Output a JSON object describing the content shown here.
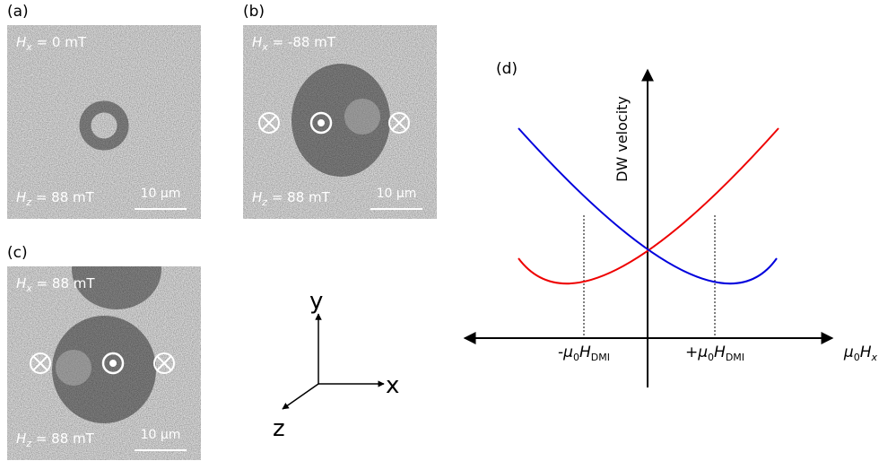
{
  "panels": [
    {
      "label": "(a)",
      "hx": {
        "symbol": "H",
        "sub": "x",
        "value": " = 0 mT"
      },
      "hz": {
        "symbol": "H",
        "sub": "z",
        "value": " = 88 mT"
      },
      "scale_bar": "10 μm"
    },
    {
      "label": "(b)",
      "hx": {
        "symbol": "H",
        "sub": "x",
        "value": " = -88 mT"
      },
      "hz": {
        "symbol": "H",
        "sub": "z",
        "value": " = 88 mT"
      },
      "scale_bar": "10 μm"
    },
    {
      "label": "(c)",
      "hx": {
        "symbol": "H",
        "sub": "x",
        "value": " = 88 mT"
      },
      "hz": {
        "symbol": "H",
        "sub": "z",
        "value": " = 88 mT"
      },
      "scale_bar": "10 μm"
    }
  ],
  "axes_triad": {
    "y": "y",
    "x": "x",
    "z": "z"
  },
  "plot": {
    "label": "(d)",
    "y_axis": "DW velocity",
    "x_axis": {
      "prefix": "μ",
      "prefix_sub": "0",
      "symbol": "H",
      "sub": "x"
    },
    "markers": [
      {
        "sign": "-",
        "mu": "μ",
        "mu_sub": "0",
        "symbol": "H",
        "sub": "DMI"
      },
      {
        "sign": "+",
        "mu": "μ",
        "mu_sub": "0",
        "symbol": "H",
        "sub": "DMI"
      }
    ]
  }
}
